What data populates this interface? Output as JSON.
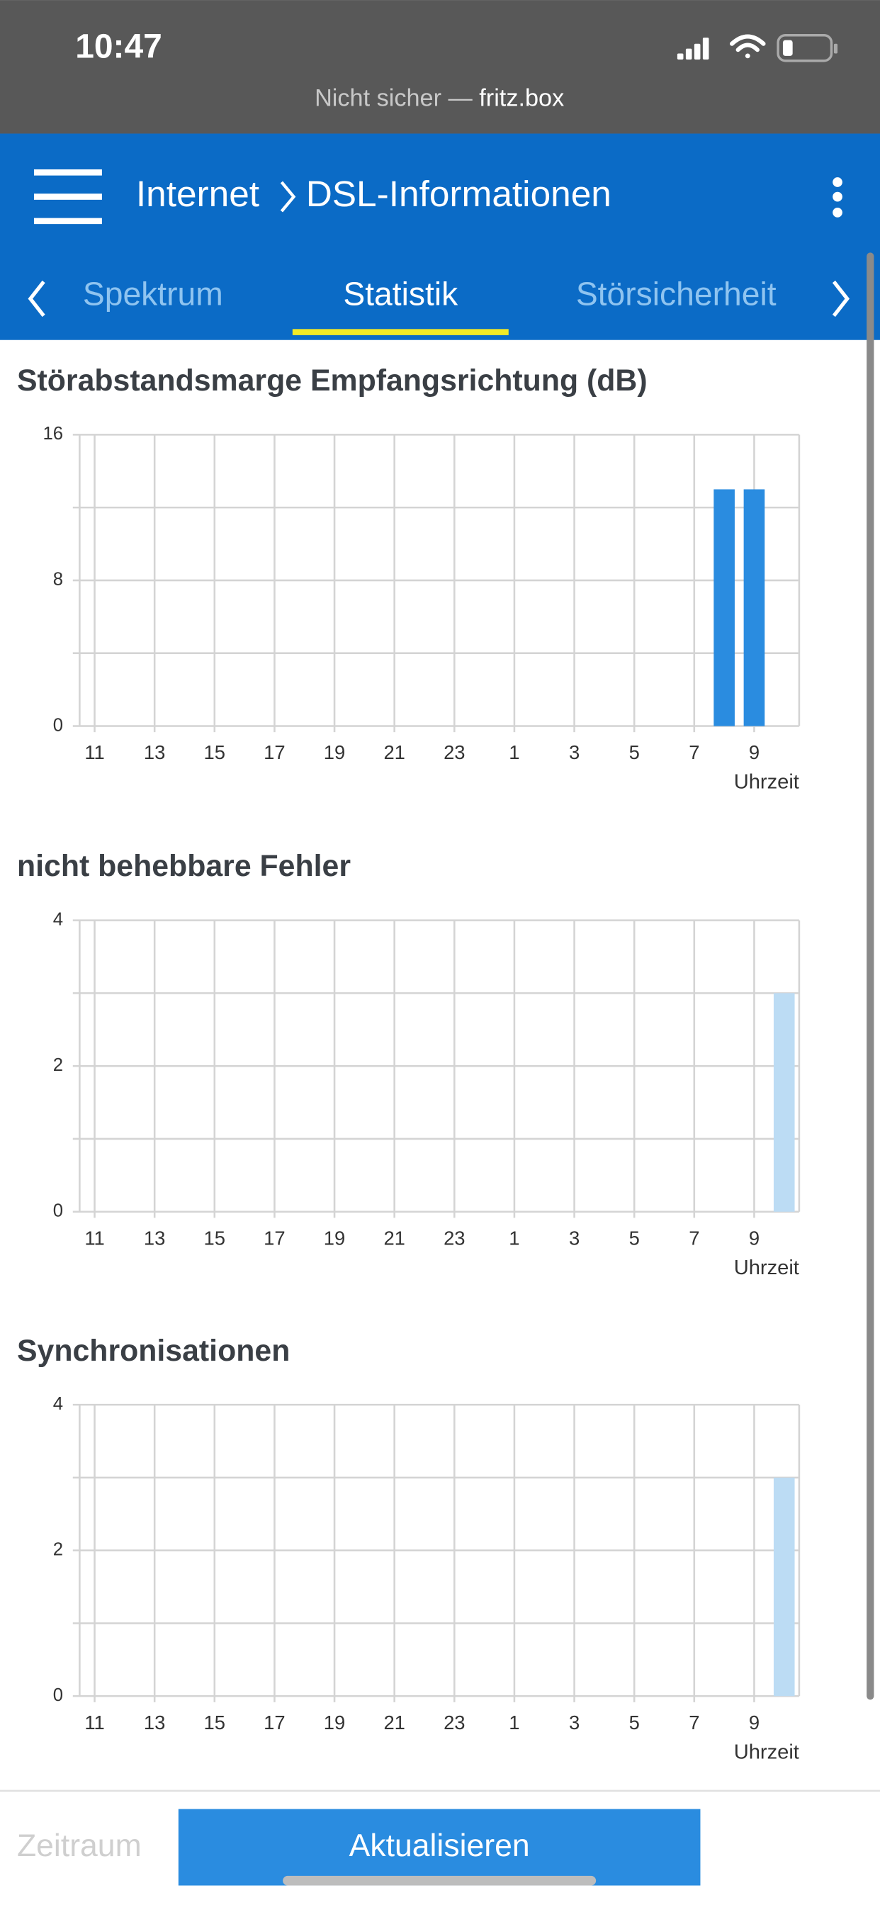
{
  "status_bar": {
    "time": "10:47"
  },
  "url_bar": {
    "label": "Nicht sicher —",
    "host": "fritz.box"
  },
  "header": {
    "breadcrumb": [
      "Internet",
      "DSL-Informationen"
    ]
  },
  "tabs": [
    "Spektrum",
    "Statistik",
    "Störsicherheit"
  ],
  "chart_data": [
    {
      "type": "bar",
      "title": "Störabstandsmarge Empfangsrichtung (dB)",
      "x_label": "Uhrzeit",
      "categories": [
        "11",
        null,
        "13",
        null,
        "15",
        null,
        "17",
        null,
        "19",
        null,
        "21",
        null,
        "23",
        null,
        "1",
        null,
        "3",
        null,
        "5",
        null,
        "7",
        null,
        "9",
        null
      ],
      "values": [
        null,
        null,
        null,
        null,
        null,
        null,
        null,
        null,
        null,
        null,
        null,
        null,
        null,
        null,
        null,
        null,
        null,
        null,
        null,
        null,
        null,
        13,
        13,
        null
      ],
      "color": "#2a8ce0",
      "ylim": [
        0,
        16
      ],
      "yticks": [
        0,
        8,
        16
      ],
      "grid": true
    },
    {
      "type": "bar",
      "title": "nicht behebbare Fehler",
      "x_label": "Uhrzeit",
      "categories": [
        "11",
        null,
        "13",
        null,
        "15",
        null,
        "17",
        null,
        "19",
        null,
        "21",
        null,
        "23",
        null,
        "1",
        null,
        "3",
        null,
        "5",
        null,
        "7",
        null,
        "9",
        null
      ],
      "values": [
        null,
        null,
        null,
        null,
        null,
        null,
        null,
        null,
        null,
        null,
        null,
        null,
        null,
        null,
        null,
        null,
        null,
        null,
        null,
        null,
        null,
        null,
        null,
        3
      ],
      "color": "#bcdcf4",
      "ylim": [
        0,
        4
      ],
      "yticks": [
        0,
        2,
        4
      ],
      "grid": true
    },
    {
      "type": "bar",
      "title": "Synchronisationen",
      "x_label": "Uhrzeit",
      "categories": [
        "11",
        null,
        "13",
        null,
        "15",
        null,
        "17",
        null,
        "19",
        null,
        "21",
        null,
        "23",
        null,
        "1",
        null,
        "3",
        null,
        "5",
        null,
        "7",
        null,
        "9",
        null
      ],
      "values": [
        null,
        null,
        null,
        null,
        null,
        null,
        null,
        null,
        null,
        null,
        null,
        null,
        null,
        null,
        null,
        null,
        null,
        null,
        null,
        null,
        null,
        null,
        null,
        3
      ],
      "color": "#bcdcf4",
      "ylim": [
        0,
        4
      ],
      "yticks": [
        0,
        2,
        4
      ],
      "grid": true
    }
  ],
  "footer": {
    "period": "Zeitraum",
    "button": "Aktualisieren"
  }
}
